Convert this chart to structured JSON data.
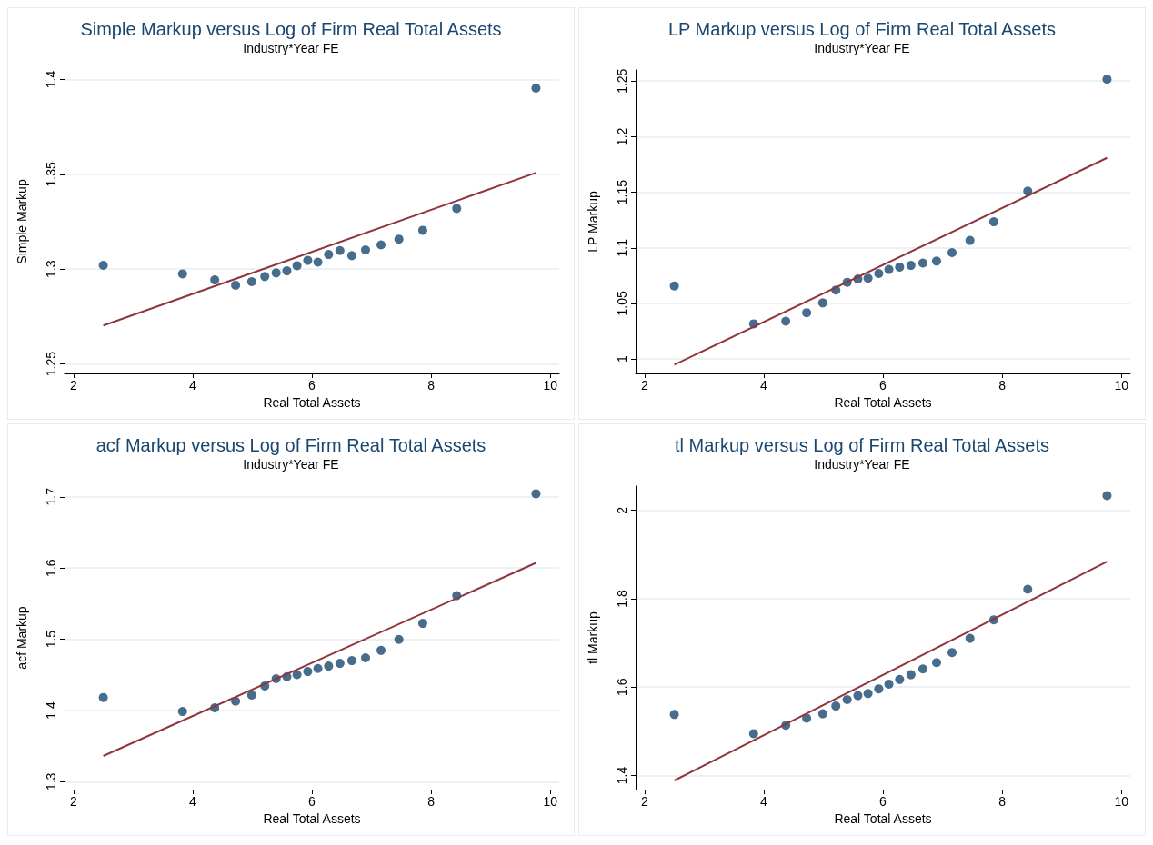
{
  "chart_data": [
    {
      "type": "scatter",
      "title": "Simple Markup versus Log of Firm Real Total Assets",
      "subtitle": "Industry*Year FE",
      "xlabel": "Real Total Assets",
      "ylabel": "Simple Markup",
      "xlim": [
        1.85,
        10.15
      ],
      "xticks": [
        2,
        4,
        6,
        8,
        10
      ],
      "ylim": [
        1.245,
        1.405
      ],
      "yticks": [
        1.25,
        1.3,
        1.35,
        1.4
      ],
      "grid": "y",
      "marker": "circle",
      "series": [
        {
          "color": "#1a476f",
          "x": [
            2.5,
            3.83,
            4.37,
            4.72,
            4.99,
            5.21,
            5.4,
            5.58,
            5.75,
            5.93,
            6.1,
            6.28,
            6.47,
            6.67,
            6.9,
            7.16,
            7.46,
            7.86,
            8.43,
            9.76
          ],
          "values": [
            1.302,
            1.2975,
            1.2943,
            1.2915,
            1.2934,
            1.2961,
            1.298,
            1.2991,
            1.3018,
            1.3046,
            1.3037,
            1.3077,
            1.3098,
            1.3071,
            1.3101,
            1.3128,
            1.3158,
            1.3205,
            1.332,
            1.3954
          ]
        },
        {
          "type": "line",
          "color": "#90353b",
          "marker": "none",
          "x": [
            2.5,
            9.76
          ],
          "values": [
            1.2703,
            1.3508
          ]
        }
      ]
    },
    {
      "type": "scatter",
      "title": "LP Markup versus Log of Firm Real Total Assets",
      "subtitle": "Industry*Year FE",
      "xlabel": "Real Total Assets",
      "ylabel": "LP Markup",
      "xlim": [
        1.85,
        10.15
      ],
      "xticks": [
        2,
        4,
        6,
        8,
        10
      ],
      "ylim": [
        0.987,
        1.26
      ],
      "yticks": [
        1,
        1.05,
        1.1,
        1.15,
        1.2,
        1.25
      ],
      "grid": "y",
      "marker": "circle",
      "series": [
        {
          "color": "#1a476f",
          "x": [
            2.5,
            3.83,
            4.37,
            4.72,
            4.99,
            5.21,
            5.4,
            5.58,
            5.75,
            5.93,
            6.1,
            6.28,
            6.47,
            6.67,
            6.9,
            7.16,
            7.46,
            7.86,
            8.43,
            9.76
          ],
          "values": [
            1.0657,
            1.0316,
            1.034,
            1.0416,
            1.0505,
            1.062,
            1.069,
            1.072,
            1.0726,
            1.0769,
            1.0805,
            1.0827,
            1.0842,
            1.0863,
            1.0881,
            1.0957,
            1.1067,
            1.1234,
            1.151,
            1.2517
          ]
        },
        {
          "type": "line",
          "color": "#90353b",
          "marker": "none",
          "x": [
            2.5,
            9.76
          ],
          "values": [
            0.9948,
            1.1809
          ]
        }
      ]
    },
    {
      "type": "scatter",
      "title": "acf Markup versus Log of Firm Real Total Assets",
      "subtitle": "Industry*Year FE",
      "xlabel": "Real Total Assets",
      "ylabel": "acf Markup",
      "xlim": [
        1.85,
        10.15
      ],
      "xticks": [
        2,
        4,
        6,
        8,
        10
      ],
      "ylim": [
        1.289,
        1.715
      ],
      "yticks": [
        1.3,
        1.4,
        1.5,
        1.6,
        1.7
      ],
      "grid": "y",
      "marker": "circle",
      "series": [
        {
          "color": "#1a476f",
          "x": [
            2.5,
            3.83,
            4.37,
            4.72,
            4.99,
            5.21,
            5.4,
            5.58,
            5.75,
            5.93,
            6.1,
            6.28,
            6.47,
            6.67,
            6.9,
            7.16,
            7.46,
            7.86,
            8.43,
            9.76
          ],
          "values": [
            1.4182,
            1.3986,
            1.4038,
            1.413,
            1.4216,
            1.4345,
            1.4446,
            1.4475,
            1.4504,
            1.4547,
            1.459,
            1.4624,
            1.4662,
            1.47,
            1.4739,
            1.4844,
            1.4998,
            1.5223,
            1.5612,
            1.7043
          ]
        },
        {
          "type": "line",
          "color": "#90353b",
          "marker": "none",
          "x": [
            2.5,
            9.76
          ],
          "values": [
            1.3362,
            1.6072
          ]
        }
      ]
    },
    {
      "type": "scatter",
      "title": "tl Markup versus Log of Firm Real Total Assets",
      "subtitle": "Industry*Year FE",
      "xlabel": "Real Total Assets",
      "ylabel": "tl Markup",
      "xlim": [
        1.85,
        10.15
      ],
      "xticks": [
        2,
        4,
        6,
        8,
        10
      ],
      "ylim": [
        1.368,
        2.055
      ],
      "yticks": [
        1.4,
        1.6,
        1.8,
        2
      ],
      "grid": "y",
      "marker": "circle",
      "series": [
        {
          "color": "#1a476f",
          "x": [
            2.5,
            3.83,
            4.37,
            4.72,
            4.99,
            5.21,
            5.4,
            5.58,
            5.75,
            5.93,
            6.1,
            6.28,
            6.47,
            6.67,
            6.9,
            7.16,
            7.46,
            7.86,
            8.43,
            9.76
          ],
          "values": [
            1.538,
            1.4946,
            1.5136,
            1.5296,
            1.5395,
            1.5571,
            1.5716,
            1.5807,
            1.5853,
            1.596,
            1.6067,
            1.6173,
            1.628,
            1.641,
            1.6554,
            1.6783,
            1.7103,
            1.7523,
            1.8216,
            2.0336
          ]
        },
        {
          "type": "line",
          "color": "#90353b",
          "marker": "none",
          "x": [
            2.5,
            9.76
          ],
          "values": [
            1.3886,
            1.8842
          ]
        }
      ]
    }
  ]
}
